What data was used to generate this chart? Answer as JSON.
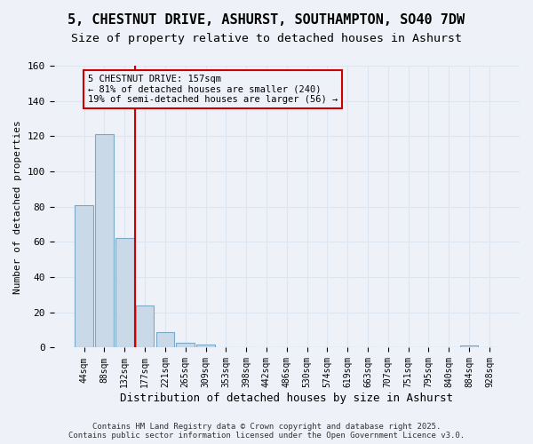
{
  "title": "5, CHESTNUT DRIVE, ASHURST, SOUTHAMPTON, SO40 7DW",
  "subtitle": "Size of property relative to detached houses in Ashurst",
  "xlabel": "Distribution of detached houses by size in Ashurst",
  "ylabel": "Number of detached properties",
  "bar_values": [
    81,
    121,
    62,
    24,
    9,
    3,
    2,
    0,
    0,
    0,
    0,
    0,
    0,
    0,
    0,
    0,
    0,
    0,
    0,
    1,
    0
  ],
  "categories": [
    "44sqm",
    "88sqm",
    "132sqm",
    "177sqm",
    "221sqm",
    "265sqm",
    "309sqm",
    "353sqm",
    "398sqm",
    "442sqm",
    "486sqm",
    "530sqm",
    "574sqm",
    "619sqm",
    "663sqm",
    "707sqm",
    "751sqm",
    "795sqm",
    "840sqm",
    "884sqm",
    "928sqm"
  ],
  "bar_color": "#c9d9e8",
  "bar_edge_color": "#7aaac8",
  "grid_color": "#dde6f0",
  "vline_x": 2.5,
  "vline_color": "#cc0000",
  "annotation_text": "5 CHESTNUT DRIVE: 157sqm\n← 81% of detached houses are smaller (240)\n19% of semi-detached houses are larger (56) →",
  "annotation_box_color": "#cc0000",
  "annotation_fontsize": 7.5,
  "title_fontsize": 11,
  "subtitle_fontsize": 9.5,
  "footer_text": "Contains HM Land Registry data © Crown copyright and database right 2025.\nContains public sector information licensed under the Open Government Licence v3.0.",
  "background_color": "#eef2f8",
  "ylim": [
    0,
    160
  ]
}
